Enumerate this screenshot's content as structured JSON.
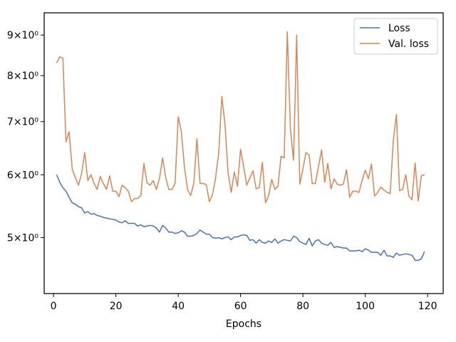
{
  "chart_data": {
    "type": "line",
    "title": "",
    "xlabel": "Epochs",
    "ylabel": "",
    "yscale": "log",
    "xlim": [
      -3,
      125
    ],
    "ylim": [
      4.25,
      9.6
    ],
    "xticks": [
      0,
      20,
      40,
      60,
      80,
      100,
      120
    ],
    "yticks": [
      {
        "value": 5,
        "label": "5×10⁰"
      },
      {
        "value": 6,
        "label": "6×10⁰"
      },
      {
        "value": 7,
        "label": "7×10⁰"
      },
      {
        "value": 8,
        "label": "8×10⁰"
      },
      {
        "value": 9,
        "label": "9×10⁰"
      }
    ],
    "grid": false,
    "legend": "top-right",
    "series": [
      {
        "name": "Loss",
        "color": "#4c72b0",
        "x": [
          1,
          2,
          3,
          4,
          5,
          6,
          7,
          8,
          9,
          10,
          11,
          12,
          13,
          14,
          15,
          16,
          17,
          18,
          19,
          20,
          21,
          22,
          23,
          24,
          25,
          26,
          27,
          28,
          29,
          30,
          31,
          32,
          33,
          34,
          35,
          36,
          37,
          38,
          39,
          40,
          41,
          42,
          43,
          44,
          45,
          46,
          47,
          48,
          49,
          50,
          51,
          52,
          53,
          54,
          55,
          56,
          57,
          58,
          59,
          60,
          61,
          62,
          63,
          64,
          65,
          66,
          67,
          68,
          69,
          70,
          71,
          72,
          73,
          74,
          75,
          76,
          77,
          78,
          79,
          80,
          81,
          82,
          83,
          84,
          85,
          86,
          87,
          88,
          89,
          90,
          91,
          92,
          93,
          94,
          95,
          96,
          97,
          98,
          99,
          100,
          101,
          102,
          103,
          104,
          105,
          106,
          107,
          108,
          109,
          110,
          111,
          112,
          113,
          114,
          115,
          116,
          117,
          118,
          119
        ],
        "values": [
          6.0,
          5.87,
          5.78,
          5.72,
          5.62,
          5.53,
          5.51,
          5.47,
          5.45,
          5.37,
          5.39,
          5.35,
          5.36,
          5.33,
          5.32,
          5.3,
          5.29,
          5.28,
          5.27,
          5.26,
          5.23,
          5.22,
          5.25,
          5.21,
          5.21,
          5.21,
          5.17,
          5.19,
          5.16,
          5.17,
          5.18,
          5.17,
          5.14,
          5.08,
          5.18,
          5.14,
          5.08,
          5.08,
          5.06,
          5.07,
          5.1,
          5.08,
          5.02,
          5.02,
          5.03,
          5.06,
          5.11,
          5.08,
          5.05,
          5.05,
          5.0,
          4.99,
          5.0,
          4.98,
          5.0,
          5.01,
          4.97,
          5.01,
          5.01,
          5.03,
          5.04,
          5.03,
          4.96,
          4.97,
          4.92,
          4.97,
          4.93,
          4.92,
          4.95,
          4.93,
          4.98,
          4.92,
          4.95,
          4.97,
          4.96,
          4.95,
          5.02,
          5.0,
          4.94,
          4.92,
          4.9,
          4.99,
          4.88,
          4.95,
          4.97,
          4.92,
          4.9,
          4.89,
          4.93,
          4.86,
          4.87,
          4.86,
          4.85,
          4.85,
          4.81,
          4.81,
          4.81,
          4.82,
          4.8,
          4.84,
          4.82,
          4.79,
          4.79,
          4.79,
          4.75,
          4.82,
          4.74,
          4.74,
          4.72,
          4.78,
          4.75,
          4.76,
          4.77,
          4.76,
          4.75,
          4.68,
          4.68,
          4.7,
          4.8
        ]
      },
      {
        "name": "Val. loss",
        "color": "#dd8452",
        "x": [
          1,
          2,
          3,
          4,
          5,
          6,
          7,
          8,
          9,
          10,
          11,
          12,
          13,
          14,
          15,
          16,
          17,
          18,
          19,
          20,
          21,
          22,
          23,
          24,
          25,
          26,
          27,
          28,
          29,
          30,
          31,
          32,
          33,
          34,
          35,
          36,
          37,
          38,
          39,
          40,
          41,
          42,
          43,
          44,
          45,
          46,
          47,
          48,
          49,
          50,
          51,
          52,
          53,
          54,
          55,
          56,
          57,
          58,
          59,
          60,
          61,
          62,
          63,
          64,
          65,
          66,
          67,
          68,
          69,
          70,
          71,
          72,
          73,
          74,
          75,
          76,
          77,
          78,
          79,
          80,
          81,
          82,
          83,
          84,
          85,
          86,
          87,
          88,
          89,
          90,
          91,
          92,
          93,
          94,
          95,
          96,
          97,
          98,
          99,
          100,
          101,
          102,
          103,
          104,
          105,
          106,
          107,
          108,
          109,
          110,
          111,
          112,
          113,
          114,
          115,
          116,
          117,
          118,
          119
        ],
        "values": [
          8.3,
          8.45,
          8.42,
          6.6,
          6.8,
          6.1,
          5.95,
          5.82,
          6.02,
          6.4,
          5.9,
          6.0,
          5.85,
          5.75,
          5.97,
          5.85,
          5.75,
          5.98,
          5.72,
          5.72,
          5.63,
          5.82,
          5.78,
          5.72,
          5.55,
          5.6,
          5.6,
          5.65,
          6.2,
          5.86,
          5.82,
          5.9,
          5.75,
          5.94,
          6.3,
          5.95,
          5.75,
          5.75,
          5.85,
          7.1,
          6.8,
          6.13,
          5.75,
          5.65,
          5.85,
          6.66,
          5.85,
          5.85,
          5.83,
          5.55,
          5.66,
          5.95,
          6.4,
          7.53,
          6.95,
          6.04,
          5.7,
          6.05,
          5.8,
          6.46,
          6.14,
          5.82,
          5.95,
          6.07,
          5.76,
          5.78,
          6.22,
          5.53,
          5.64,
          5.92,
          5.75,
          5.8,
          6.33,
          6.3,
          9.08,
          6.85,
          6.26,
          9.0,
          5.84,
          6.1,
          6.4,
          6.35,
          5.85,
          5.85,
          6.15,
          6.45,
          5.87,
          6.2,
          5.76,
          5.93,
          5.84,
          5.82,
          5.84,
          6.09,
          5.62,
          5.72,
          5.72,
          5.7,
          5.9,
          6.08,
          5.93,
          6.19,
          5.64,
          5.7,
          5.79,
          5.74,
          5.7,
          5.68,
          6.62,
          7.15,
          5.73,
          5.75,
          6.0,
          5.64,
          5.58,
          6.21,
          5.56,
          5.98,
          6.0
        ]
      }
    ]
  }
}
